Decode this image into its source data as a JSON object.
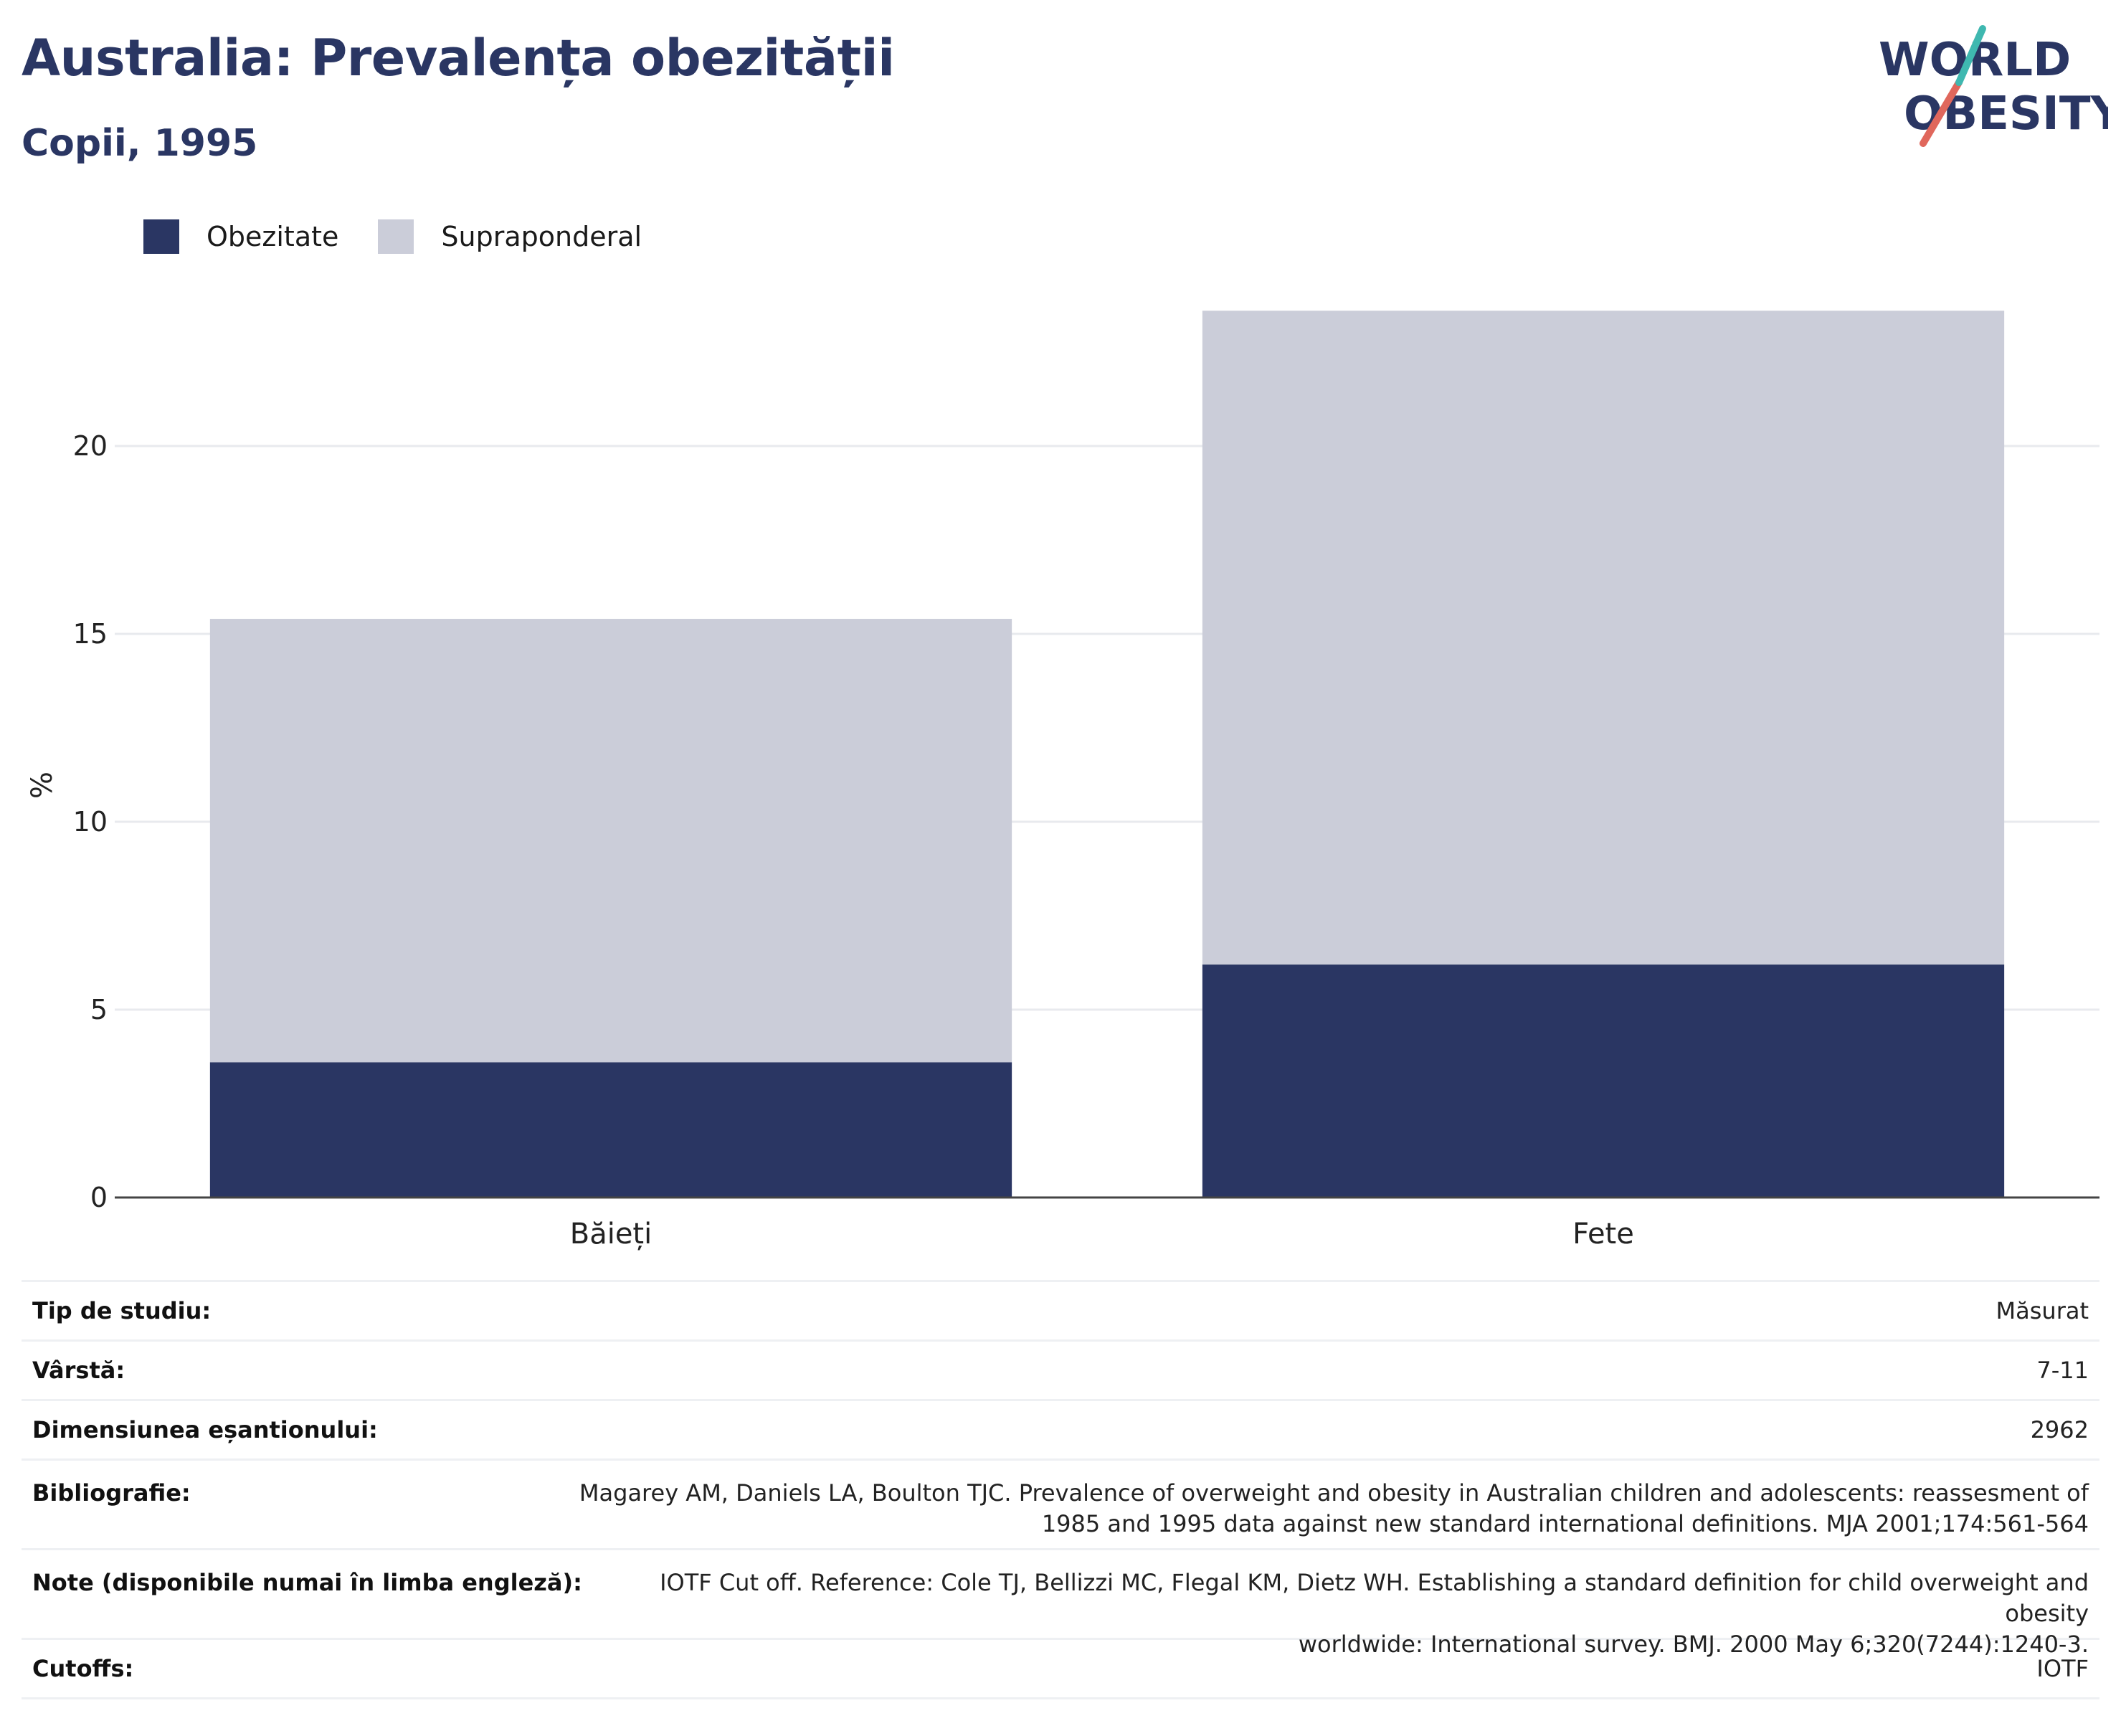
{
  "header": {
    "title": "Australia: Prevalența obezității",
    "subtitle": "Copii, 1995",
    "logo_text": "WORLD OBESITY"
  },
  "legend": [
    {
      "label": "Obezitate",
      "color": "#2a3663"
    },
    {
      "label": "Supraponderal",
      "color": "#cbcdd9"
    }
  ],
  "chart_data": {
    "type": "bar",
    "stacked": true,
    "categories": [
      "Băieți",
      "Fete"
    ],
    "series": [
      {
        "name": "Obezitate",
        "values": [
          3.6,
          6.2
        ],
        "color": "#2a3663"
      },
      {
        "name": "Supraponderal",
        "values": [
          11.8,
          17.4
        ],
        "color": "#cbcdd9"
      }
    ],
    "xlabel": "",
    "ylabel": "%",
    "ylim": [
      0,
      25
    ],
    "yticks": [
      0,
      5,
      10,
      15,
      20
    ],
    "grid": true,
    "legend_position": "top-left"
  },
  "meta": {
    "rows": [
      {
        "key": "Tip de studiu:",
        "value": "Măsurat"
      },
      {
        "key": "Vârstă:",
        "value": "7-11"
      },
      {
        "key": "Dimensiunea eșantionului:",
        "value": "2962"
      },
      {
        "key": "Bibliografie:",
        "value_lines": [
          "Magarey AM, Daniels LA, Boulton TJC. Prevalence of overweight and obesity in Australian children and adolescents: reassesment of",
          "1985 and 1995 data against new standard international definitions. MJA 2001;174:561-564"
        ]
      },
      {
        "key": "Note (disponibile numai în limba engleză):",
        "value_lines": [
          "IOTF Cut off. Reference: Cole TJ, Bellizzi MC, Flegal KM, Dietz WH. Establishing a standard definition for child overweight and obesity",
          "worldwide: International survey. BMJ. 2000 May 6;320(7244):1240-3."
        ]
      },
      {
        "key": "Cutoffs:",
        "value": "IOTF"
      }
    ]
  }
}
